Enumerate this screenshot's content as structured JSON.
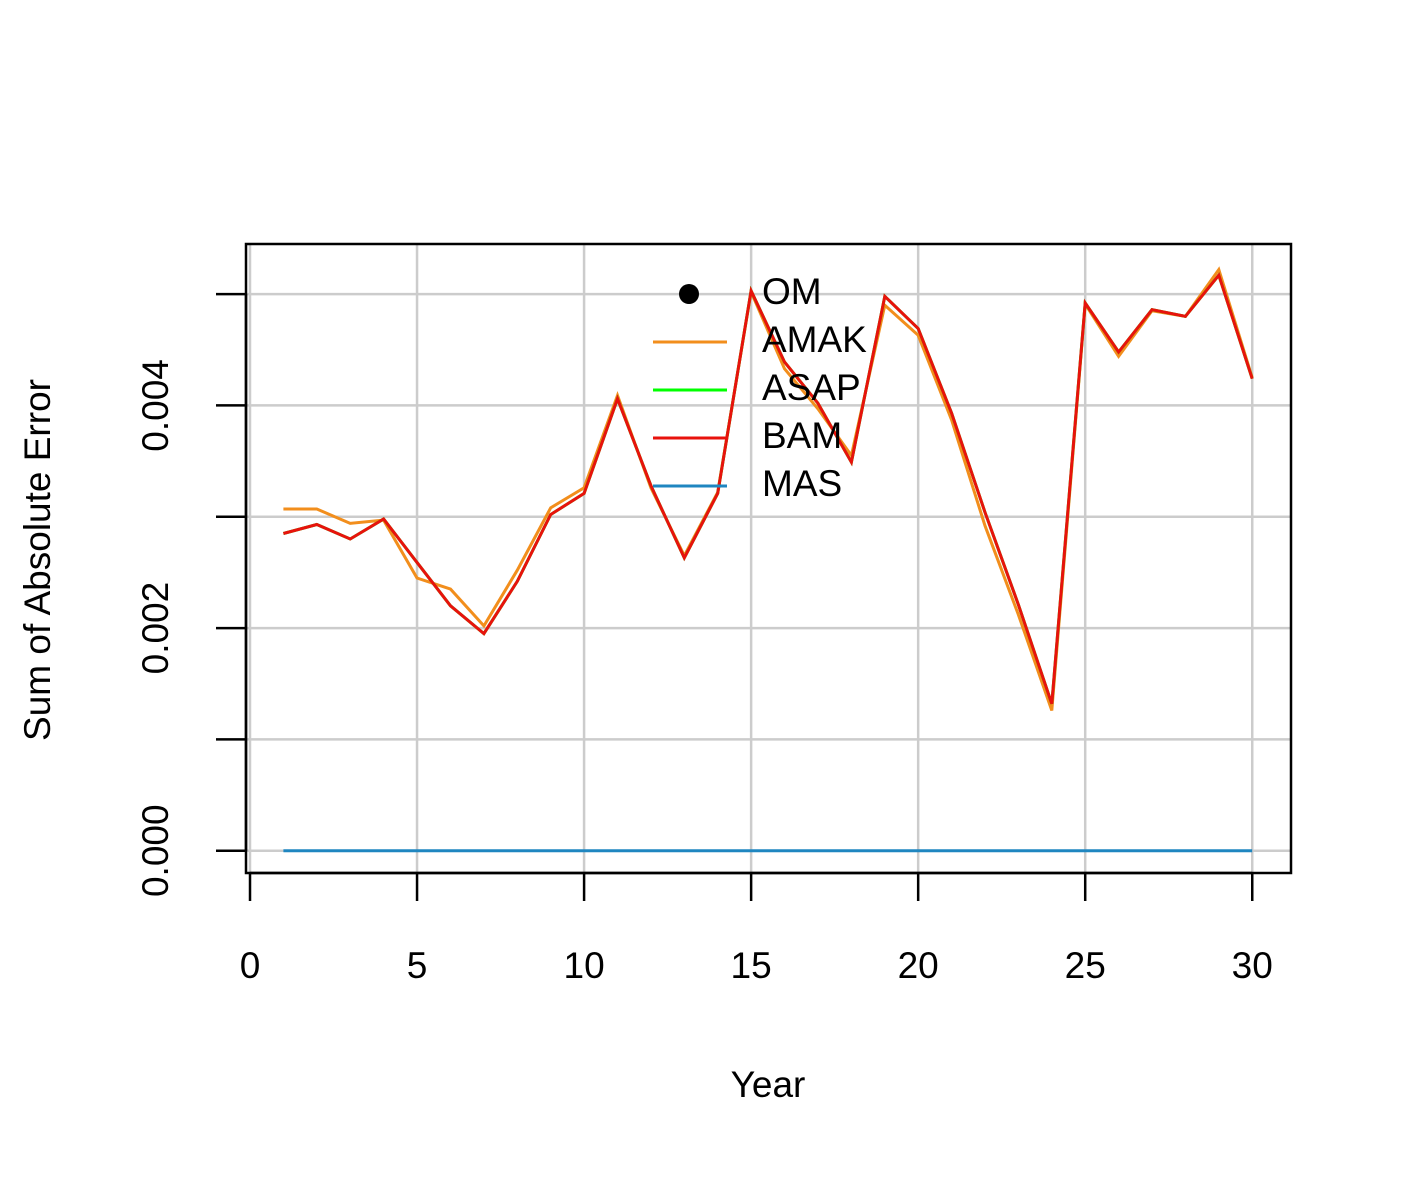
{
  "chart_data": {
    "type": "line",
    "x_label": "Year",
    "y_label": "Sum of Absolute Error",
    "x": [
      1,
      2,
      3,
      4,
      5,
      6,
      7,
      8,
      9,
      10,
      11,
      12,
      13,
      14,
      15,
      16,
      17,
      18,
      19,
      20,
      21,
      22,
      23,
      24,
      25,
      26,
      27,
      28,
      29,
      30
    ],
    "series": [
      {
        "name": "OM",
        "color": "#000000",
        "style": "point",
        "values": [
          null,
          null,
          null,
          null,
          null,
          null,
          null,
          null,
          null,
          null,
          null,
          null,
          null,
          null,
          null,
          null,
          null,
          null,
          null,
          null,
          null,
          null,
          null,
          null,
          null,
          null,
          null,
          null,
          null,
          null
        ]
      },
      {
        "name": "AMAK",
        "color": "#f28e1c",
        "style": "line",
        "values": [
          0.00307,
          0.00307,
          0.00294,
          0.00297,
          0.00245,
          0.00235,
          0.00202,
          0.00252,
          0.00308,
          0.00326,
          0.00409,
          0.00326,
          0.00265,
          0.00322,
          0.00502,
          0.00433,
          0.00397,
          0.00355,
          0.0049,
          0.00463,
          0.00387,
          0.00292,
          0.00212,
          0.00126,
          0.00491,
          0.00444,
          0.00485,
          0.0048,
          0.00522,
          0.00425
        ]
      },
      {
        "name": "ASAP",
        "color": "#00ff00",
        "style": "line",
        "values": [
          0.00285,
          0.00293,
          0.0028,
          0.00298,
          0.00259,
          0.0022,
          0.00195,
          0.00242,
          0.00302,
          0.00321,
          0.00406,
          0.00328,
          0.00263,
          0.00321,
          0.00503,
          0.00439,
          0.00402,
          0.00349,
          0.00498,
          0.00469,
          0.00393,
          0.00304,
          0.00221,
          0.00132,
          0.00492,
          0.00448,
          0.00486,
          0.0048,
          0.00517,
          0.00424
        ]
      },
      {
        "name": "BAM",
        "color": "#e8120c",
        "style": "line",
        "values": [
          0.00285,
          0.00293,
          0.0028,
          0.00298,
          0.00259,
          0.0022,
          0.00195,
          0.00242,
          0.00302,
          0.00321,
          0.00406,
          0.00328,
          0.00263,
          0.00321,
          0.00503,
          0.00439,
          0.00402,
          0.00349,
          0.00498,
          0.00469,
          0.00393,
          0.00304,
          0.00221,
          0.00132,
          0.00492,
          0.00448,
          0.00486,
          0.0048,
          0.00517,
          0.00424
        ]
      },
      {
        "name": "MAS",
        "color": "#1f86c0",
        "style": "line",
        "values": [
          0,
          0,
          0,
          0,
          0,
          0,
          0,
          0,
          0,
          0,
          0,
          0,
          0,
          0,
          0,
          0,
          0,
          0,
          0,
          0,
          0,
          0,
          0,
          0,
          0,
          0,
          0,
          0,
          0,
          0
        ]
      }
    ],
    "xlim": [
      -0.12,
      31.16
    ],
    "ylim": [
      -0.0002,
      0.00545
    ],
    "xticks": [
      0,
      5,
      10,
      15,
      20,
      25,
      30
    ],
    "yticks": [
      {
        "value": 0,
        "label": "0.000"
      },
      {
        "value": 0.002,
        "label": "0.002"
      },
      {
        "value": 0.004,
        "label": "0.004"
      }
    ],
    "yminor_ticks": [
      0.001,
      0.003,
      0.005
    ],
    "grid": true,
    "legend_position": "top"
  }
}
